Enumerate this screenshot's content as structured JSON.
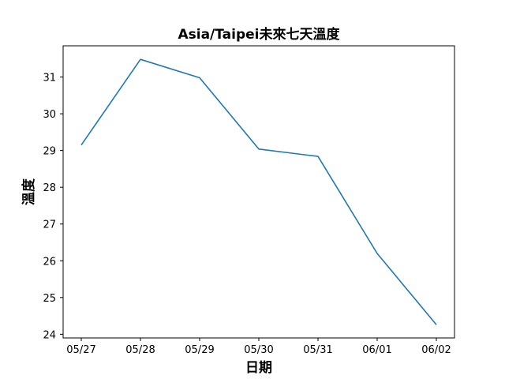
{
  "chart_data": {
    "type": "line",
    "title": "Asia/Taipei未來七天溫度",
    "xlabel": "日期",
    "ylabel": "溫度",
    "categories": [
      "05/27",
      "05/28",
      "05/29",
      "05/30",
      "05/31",
      "06/01",
      "06/02"
    ],
    "series": [
      {
        "values": [
          29.15,
          31.48,
          30.98,
          29.04,
          28.84,
          26.2,
          24.26
        ],
        "color": "#1f77b4"
      }
    ],
    "yticks": [
      24,
      25,
      26,
      27,
      28,
      29,
      30,
      31
    ],
    "ylim": [
      23.9,
      31.85
    ],
    "grid": false,
    "legend": "none"
  }
}
